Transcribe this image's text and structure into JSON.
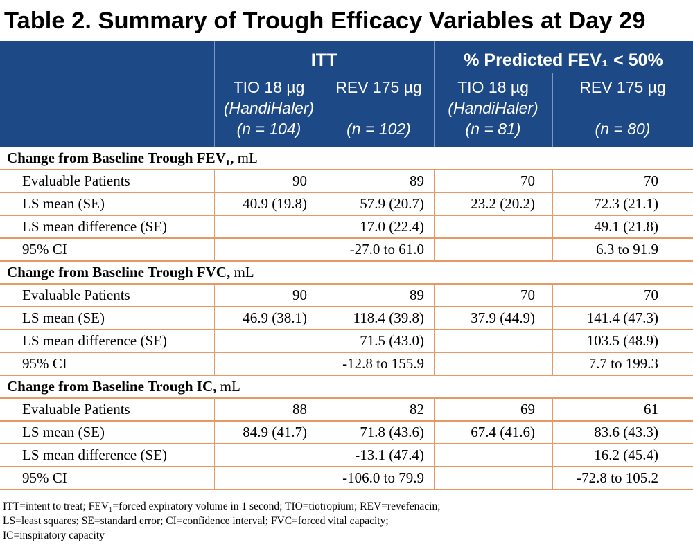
{
  "title": "Table 2. Summary of Trough Efficacy Variables at Day 29",
  "groups": [
    {
      "label": "ITT"
    },
    {
      "label": "% Predicted FEV₁ < 50%"
    }
  ],
  "columns": [
    {
      "drug": "TIO 18 µg",
      "device": "(HandiHaler)",
      "n": "(n = 104)"
    },
    {
      "drug": "REV 175 µg",
      "device": "",
      "n": "(n = 102)"
    },
    {
      "drug": "TIO 18 µg",
      "device": "(HandiHaler)",
      "n": "(n = 81)"
    },
    {
      "drug": "REV 175 µg",
      "device": "",
      "n": "(n = 80)"
    }
  ],
  "sections": [
    {
      "heading": "Change from Baseline Trough FEV₁,",
      "unit": " mL",
      "rows": [
        {
          "label": "Evaluable Patients",
          "values": [
            "90",
            "89",
            "70",
            "70"
          ]
        },
        {
          "label": "LS mean (SE)",
          "values": [
            "40.9 (19.8)",
            "57.9 (20.7)",
            "23.2 (20.2)",
            "72.3 (21.1)"
          ]
        },
        {
          "label": "LS mean difference (SE)",
          "values": [
            "",
            "17.0 (22.4)",
            "",
            "49.1 (21.8)"
          ]
        },
        {
          "label": "95% CI",
          "values": [
            "",
            "-27.0 to 61.0",
            "",
            "6.3 to 91.9"
          ]
        }
      ]
    },
    {
      "heading": "Change from Baseline Trough FVC,",
      "unit": " mL",
      "rows": [
        {
          "label": "Evaluable Patients",
          "values": [
            "90",
            "89",
            "70",
            "70"
          ]
        },
        {
          "label": "LS mean (SE)",
          "values": [
            "46.9 (38.1)",
            "118.4 (39.8)",
            "37.9 (44.9)",
            "141.4 (47.3)"
          ]
        },
        {
          "label": "LS mean difference (SE)",
          "values": [
            "",
            "71.5 (43.0)",
            "",
            "103.5 (48.9)"
          ]
        },
        {
          "label": "95% CI",
          "values": [
            "",
            "-12.8 to 155.9",
            "",
            "7.7 to 199.3"
          ]
        }
      ]
    },
    {
      "heading": "Change from Baseline Trough IC,",
      "unit": " mL",
      "rows": [
        {
          "label": "Evaluable Patients",
          "values": [
            "88",
            "82",
            "69",
            "61"
          ]
        },
        {
          "label": "LS mean (SE)",
          "values": [
            "84.9 (41.7)",
            "71.8 (43.6)",
            "67.4 (41.6)",
            "83.6 (43.3)"
          ]
        },
        {
          "label": "LS mean difference (SE)",
          "values": [
            "",
            "-13.1 (47.4)",
            "",
            "16.2 (45.4)"
          ]
        },
        {
          "label": "95% CI",
          "values": [
            "",
            "-106.0 to 79.9",
            "",
            "-72.8 to 105.2"
          ]
        }
      ]
    }
  ],
  "footnote": [
    "ITT=intent to treat; FEV₁=forced expiratory volume in 1 second; TIO=tiotropium; REV=revefenacin;",
    "LS=least squares; SE=standard error; CI=confidence interval; FVC=forced vital capacity;",
    "IC=inspiratory capacity"
  ],
  "colors": {
    "header_bg": "#1d4a87",
    "rule": "#e69963"
  }
}
